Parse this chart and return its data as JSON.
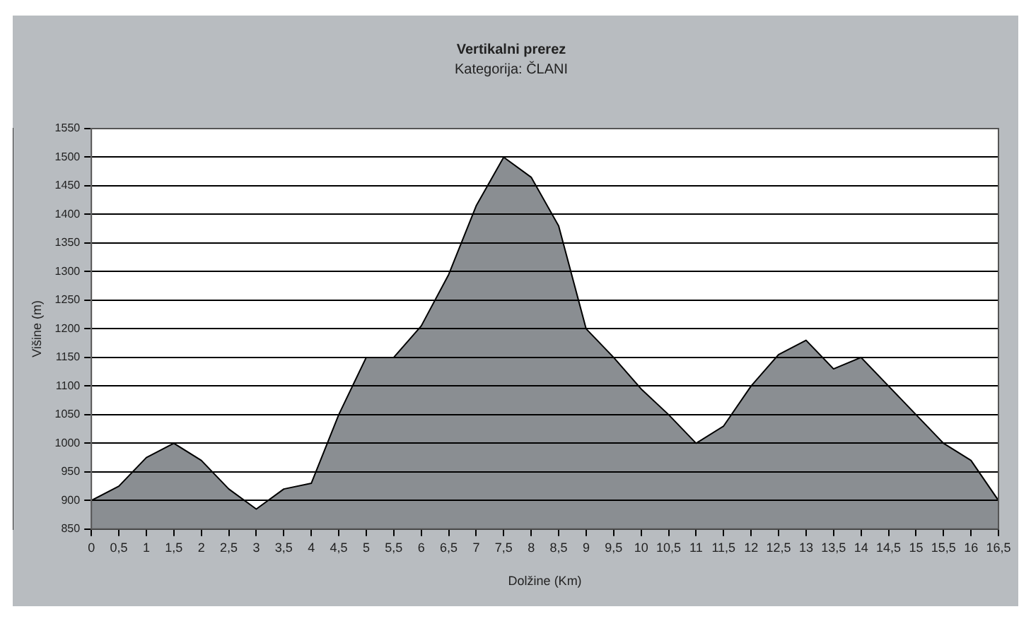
{
  "chart_data": {
    "type": "area",
    "title": "Vertikalni prerez",
    "subtitle": "Kategorija: ČLANI",
    "xlabel": "Dolžine (Km)",
    "ylabel": "Višine (m)",
    "x": [
      0,
      0.5,
      1,
      1.5,
      2,
      2.5,
      3,
      3.5,
      4,
      4.5,
      5,
      5.5,
      6,
      6.5,
      7,
      7.5,
      8,
      8.5,
      9,
      9.5,
      10,
      10.5,
      11,
      11.5,
      12,
      12.5,
      13,
      13.5,
      14,
      14.5,
      15,
      15.5,
      16,
      16.5
    ],
    "series": [
      {
        "color": "#8a8e92",
        "values": [
          900,
          925,
          975,
          1000,
          970,
          920,
          885,
          920,
          930,
          1050,
          1150,
          1150,
          1205,
          1295,
          1415,
          1500,
          1465,
          1380,
          1200,
          1150,
          1095,
          1050,
          1000,
          1030,
          1100,
          1155,
          1180,
          1130,
          1150,
          1100,
          1050,
          1000,
          970,
          900
        ]
      }
    ],
    "xlim": [
      0,
      16.5
    ],
    "xticks": [
      0,
      {
        "value": 0.5,
        "label": "0,5"
      },
      1,
      {
        "value": 1.5,
        "label": "1,5"
      },
      2,
      {
        "value": 2.5,
        "label": "2,5"
      },
      3,
      {
        "value": 3.5,
        "label": "3,5"
      },
      4,
      {
        "value": 4.5,
        "label": "4,5"
      },
      5,
      {
        "value": 5.5,
        "label": "5,5"
      },
      6,
      {
        "value": 6.5,
        "label": "6,5"
      },
      7,
      {
        "value": 7.5,
        "label": "7,5"
      },
      8,
      {
        "value": 8.5,
        "label": "8,5"
      },
      9,
      {
        "value": 9.5,
        "label": "9,5"
      },
      10,
      {
        "value": 10.5,
        "label": "10,5"
      },
      11,
      {
        "value": 11.5,
        "label": "11,5"
      },
      12,
      {
        "value": 12.5,
        "label": "12,5"
      },
      13,
      {
        "value": 13.5,
        "label": "13,5"
      },
      14,
      {
        "value": 14.5,
        "label": "14,5"
      },
      15,
      {
        "value": 15.5,
        "label": "15,5"
      },
      16,
      {
        "value": 16.5,
        "label": "16,5"
      }
    ],
    "ylim": [
      850,
      1550
    ],
    "yticks": [
      850,
      900,
      950,
      1000,
      1050,
      1100,
      1150,
      1200,
      1250,
      1300,
      1350,
      1400,
      1450,
      1500,
      1550
    ],
    "grid": "y",
    "legend": false,
    "marker": "none",
    "line_style": "solid"
  }
}
